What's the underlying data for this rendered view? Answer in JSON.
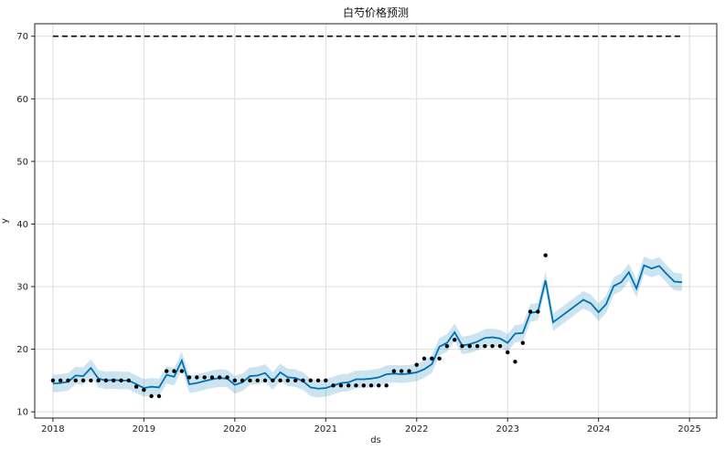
{
  "chart_data": {
    "type": "line",
    "title": "白芍价格预测",
    "xlabel": "ds",
    "ylabel": "y",
    "x_ticks": [
      "2018",
      "2019",
      "2020",
      "2021",
      "2022",
      "2023",
      "2024",
      "2025"
    ],
    "y_ticks": [
      10,
      20,
      30,
      40,
      50,
      60,
      70
    ],
    "xlim": [
      2017.8,
      2025.3
    ],
    "ylim": [
      9,
      72
    ],
    "grid": true,
    "cap": {
      "value": 70,
      "x_start": 2018.0,
      "x_end": 2024.92
    },
    "colors": {
      "forecast": "#0072B2",
      "interval": "#0072B2",
      "observed": "#000000",
      "cap": "#000000",
      "grid": "#dcdcdc"
    },
    "series": [
      {
        "kind": "observed",
        "x": [
          2018.0,
          2018.083,
          2018.167,
          2018.25,
          2018.333,
          2018.417,
          2018.5,
          2018.583,
          2018.667,
          2018.75,
          2018.833,
          2018.917,
          2019.0,
          2019.083,
          2019.167,
          2019.25,
          2019.333,
          2019.417,
          2019.5,
          2019.583,
          2019.667,
          2019.75,
          2019.833,
          2019.917,
          2020.0,
          2020.083,
          2020.167,
          2020.25,
          2020.333,
          2020.417,
          2020.5,
          2020.583,
          2020.667,
          2020.75,
          2020.833,
          2020.917,
          2021.0,
          2021.083,
          2021.167,
          2021.25,
          2021.333,
          2021.417,
          2021.5,
          2021.583,
          2021.667,
          2021.75,
          2021.833,
          2021.917,
          2022.0,
          2022.083,
          2022.167,
          2022.25,
          2022.333,
          2022.417,
          2022.5,
          2022.583,
          2022.667,
          2022.75,
          2022.833,
          2022.917,
          2023.0,
          2023.083,
          2023.167,
          2023.25,
          2023.333,
          2023.417
        ],
        "y": [
          15,
          15,
          15,
          15,
          15,
          15,
          15,
          15,
          15,
          15,
          15,
          14,
          13.5,
          12.5,
          12.5,
          16.5,
          16.5,
          16.5,
          15.5,
          15.5,
          15.5,
          15.5,
          15.5,
          15.5,
          15,
          15,
          15,
          15,
          15,
          15,
          15,
          15,
          15,
          15,
          15,
          15,
          15,
          14.2,
          14.2,
          14.2,
          14.2,
          14.2,
          14.2,
          14.2,
          14.2,
          16.5,
          16.5,
          16.5,
          17.5,
          18.5,
          18.5,
          18.5,
          20.5,
          21.5,
          20.5,
          20.5,
          20.5,
          20.5,
          20.5,
          20.5,
          19.5,
          18,
          21,
          26,
          26,
          35
        ]
      },
      {
        "kind": "forecast",
        "x": [
          2018.0,
          2018.083,
          2018.167,
          2018.25,
          2018.333,
          2018.417,
          2018.5,
          2018.583,
          2018.667,
          2018.75,
          2018.833,
          2018.917,
          2019.0,
          2019.083,
          2019.167,
          2019.25,
          2019.333,
          2019.417,
          2019.5,
          2019.583,
          2019.667,
          2019.75,
          2019.833,
          2019.917,
          2020.0,
          2020.083,
          2020.167,
          2020.25,
          2020.333,
          2020.417,
          2020.5,
          2020.583,
          2020.667,
          2020.75,
          2020.833,
          2020.917,
          2021.0,
          2021.083,
          2021.167,
          2021.25,
          2021.333,
          2021.417,
          2021.5,
          2021.583,
          2021.667,
          2021.75,
          2021.833,
          2021.917,
          2022.0,
          2022.083,
          2022.167,
          2022.25,
          2022.333,
          2022.417,
          2022.5,
          2022.583,
          2022.667,
          2022.75,
          2022.833,
          2022.917,
          2023.0,
          2023.083,
          2023.167,
          2023.25,
          2023.333,
          2023.417,
          2023.5,
          2023.583,
          2023.667,
          2023.75,
          2023.833,
          2023.917,
          2024.0,
          2024.083,
          2024.167,
          2024.25,
          2024.333,
          2024.417,
          2024.5,
          2024.583,
          2024.667,
          2024.75,
          2024.833,
          2024.917
        ],
        "y": [
          14.5,
          14.6,
          14.8,
          15.8,
          15.7,
          17.0,
          15.3,
          15.0,
          15.1,
          15.0,
          15.0,
          14.4,
          13.8,
          14.0,
          13.9,
          15.9,
          15.6,
          18.2,
          14.4,
          14.6,
          14.9,
          15.2,
          15.4,
          15.3,
          14.3,
          14.7,
          15.7,
          15.8,
          16.2,
          14.9,
          16.3,
          15.5,
          15.4,
          14.9,
          13.9,
          13.7,
          13.8,
          14.2,
          14.6,
          14.7,
          15.2,
          15.2,
          15.3,
          15.5,
          16.0,
          16.1,
          16.0,
          16.1,
          16.3,
          16.8,
          17.6,
          20.4,
          21.0,
          22.7,
          20.6,
          20.8,
          21.2,
          21.8,
          21.9,
          21.7,
          21.0,
          22.5,
          22.6,
          25.8,
          26.0,
          31.0,
          24.3,
          25.2,
          26.1,
          27.0,
          27.9,
          27.3,
          25.9,
          27.2,
          30.1,
          30.7,
          32.3,
          29.7,
          33.4,
          32.9,
          33.3,
          32.0,
          30.8,
          30.7
        ]
      }
    ],
    "interval_half_width": 1.4
  }
}
